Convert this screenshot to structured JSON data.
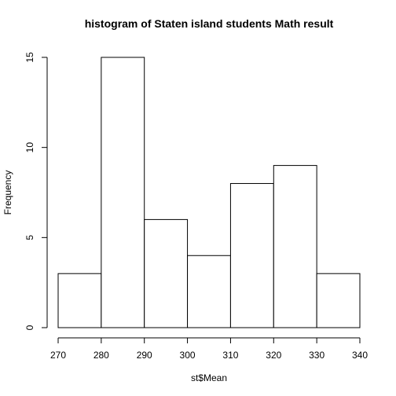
{
  "chart_data": {
    "type": "bar",
    "title": "histogram of Staten island students Math result",
    "xlabel": "st$Mean",
    "ylabel": "Frequency",
    "bins": [
      {
        "start": 270,
        "end": 280,
        "count": 3
      },
      {
        "start": 280,
        "end": 290,
        "count": 15
      },
      {
        "start": 290,
        "end": 300,
        "count": 6
      },
      {
        "start": 300,
        "end": 310,
        "count": 4
      },
      {
        "start": 310,
        "end": 320,
        "count": 8
      },
      {
        "start": 320,
        "end": 330,
        "count": 9
      },
      {
        "start": 330,
        "end": 340,
        "count": 3
      }
    ],
    "xlim": [
      270,
      340
    ],
    "ylim": [
      0,
      15
    ],
    "x_ticks": [
      "270",
      "280",
      "290",
      "300",
      "310",
      "320",
      "330",
      "340"
    ],
    "y_ticks": [
      "0",
      "5",
      "10",
      "15"
    ],
    "bar_fill": "#ffffff",
    "bar_stroke": "#000000",
    "grid": false
  }
}
